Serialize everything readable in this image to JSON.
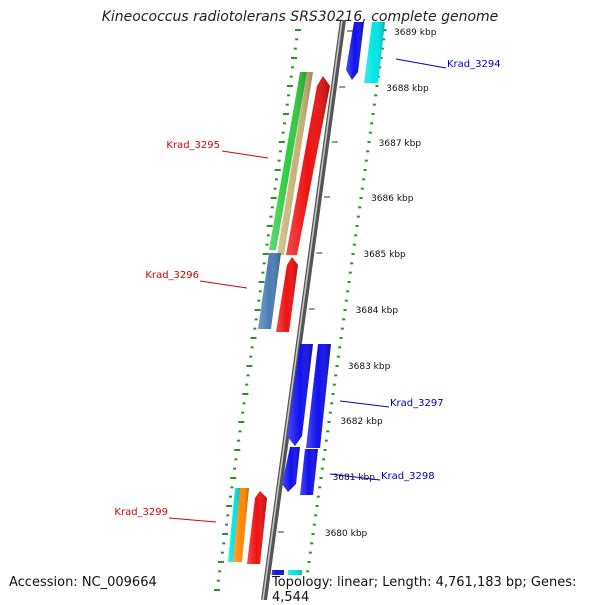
{
  "title": "Kineococcus radiotolerans SRS30216, complete genome",
  "accession": "Accession: NC_009664",
  "summary": "Topology: linear; Length: 4,761,183 bp; Genes: 4,544",
  "scale": {
    "unit": "kbp",
    "ticks": [
      "3689 kbp",
      "3688 kbp",
      "3687 kbp",
      "3686 kbp",
      "3685 kbp",
      "3684 kbp",
      "3683 kbp",
      "3682 kbp",
      "3681 kbp",
      "3680 kbp"
    ]
  },
  "genes": [
    {
      "id": "Krad_3294",
      "strand": "reverse",
      "color": "#1010ee"
    },
    {
      "id": "Krad_3295",
      "strand": "forward",
      "color": "#ee1111"
    },
    {
      "id": "Krad_3296",
      "strand": "forward",
      "color": "#ee1111"
    },
    {
      "id": "Krad_3297",
      "strand": "reverse",
      "color": "#1010ee"
    },
    {
      "id": "Krad_3298",
      "strand": "reverse",
      "color": "#1010ee"
    },
    {
      "id": "Krad_3299",
      "strand": "forward",
      "color": "#ee1111"
    }
  ],
  "feature_colors": [
    "#00e5e5",
    "#2ecc40",
    "#c8b273",
    "#4a7db5",
    "#ff8800"
  ]
}
